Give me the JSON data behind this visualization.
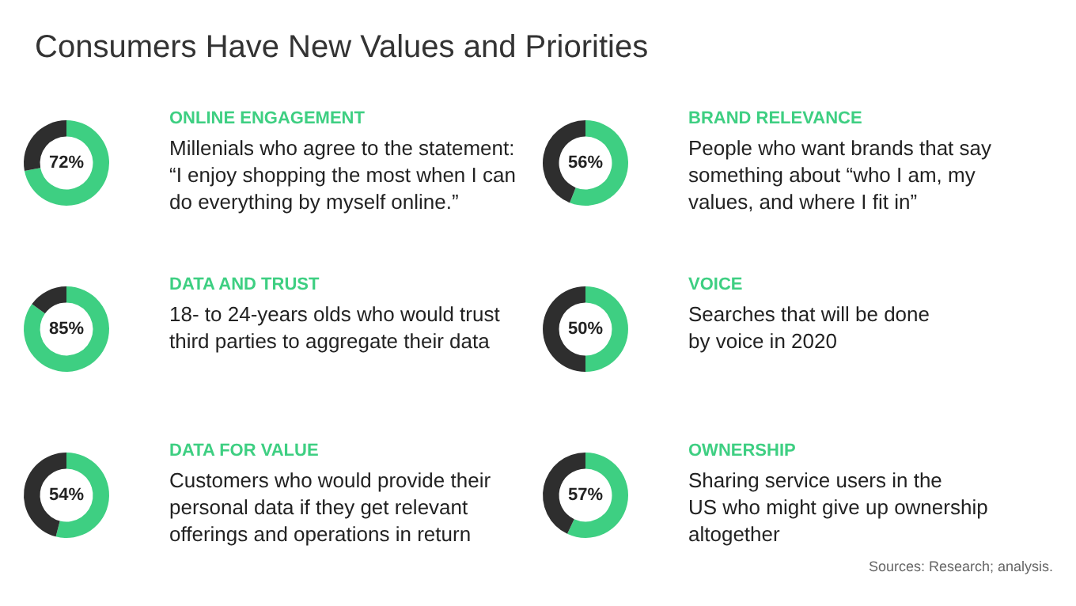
{
  "chart_data": [
    {
      "type": "other",
      "title": "Consumers Have New Values and Priorities",
      "annotations": [
        "Sources: Research; analysis."
      ]
    },
    {
      "type": "donut",
      "title": "ONLINE ENGAGEMENT",
      "subtitle": "Millenials who agree to the statement:\n“I enjoy shopping the most when I can\ndo everything by myself online.”",
      "categories": [
        null,
        null
      ],
      "values": [
        72,
        28
      ],
      "colors": [
        "#3ecf82",
        "#2e2e2e"
      ],
      "value_labels": [
        "72%",
        null
      ]
    },
    {
      "type": "donut",
      "title": "BRAND RELEVANCE",
      "subtitle": "People who want brands that say\nsomething about “who I am, my\nvalues, and where I fit in”",
      "categories": [
        null,
        null
      ],
      "values": [
        56,
        44
      ],
      "colors": [
        "#3ecf82",
        "#2e2e2e"
      ],
      "value_labels": [
        "56%",
        null
      ]
    },
    {
      "type": "donut",
      "title": "DATA AND TRUST",
      "subtitle": "18- to 24-years olds who would trust\nthird parties to aggregate their data",
      "categories": [
        null,
        null
      ],
      "values": [
        85,
        15
      ],
      "colors": [
        "#3ecf82",
        "#2e2e2e"
      ],
      "value_labels": [
        "85%",
        null
      ]
    },
    {
      "type": "donut",
      "title": "VOICE",
      "subtitle": "Searches that will be done\nby voice in 2020",
      "categories": [
        null,
        null
      ],
      "values": [
        50,
        50
      ],
      "colors": [
        "#3ecf82",
        "#2e2e2e"
      ],
      "value_labels": [
        "50%",
        null
      ]
    },
    {
      "type": "donut",
      "title": "DATA FOR VALUE",
      "subtitle": "Customers who would provide their\npersonal data if they get relevant\nofferings and operations in return",
      "categories": [
        null,
        null
      ],
      "values": [
        54,
        46
      ],
      "colors": [
        "#3ecf82",
        "#2e2e2e"
      ],
      "value_labels": [
        "54%",
        null
      ]
    },
    {
      "type": "donut",
      "title": "OWNERSHIP",
      "subtitle": "Sharing service users in the\nUS who might give up ownership\naltogether",
      "categories": [
        null,
        null
      ],
      "values": [
        57,
        43
      ],
      "colors": [
        "#3ecf82",
        "#2e2e2e"
      ],
      "value_labels": [
        "57%",
        null
      ]
    }
  ]
}
